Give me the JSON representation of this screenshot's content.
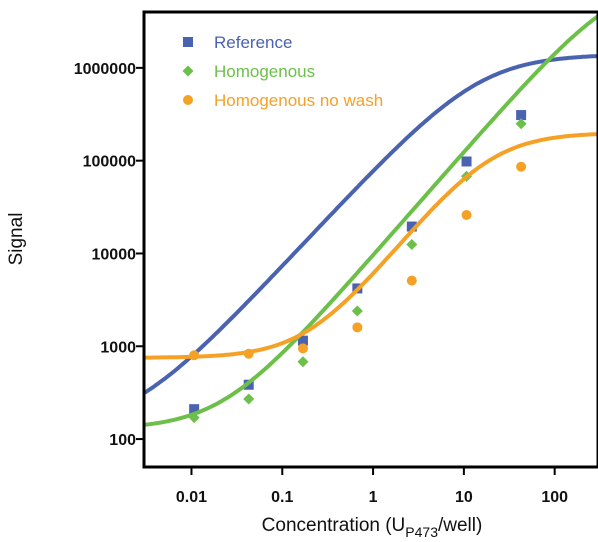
{
  "chart_data": {
    "type": "scatter",
    "xlabel": {
      "main": "Concentration (U",
      "sub": "P473",
      "tail": "/well)"
    },
    "ylabel": "Signal",
    "x_scale": "log",
    "y_scale": "log",
    "xlim": [
      0.003,
      300
    ],
    "ylim": [
      50,
      4000000
    ],
    "x_ticks": [
      0.01,
      0.1,
      1,
      10,
      100
    ],
    "x_tick_labels": [
      "0.01",
      "0.1",
      "1",
      "10",
      "100"
    ],
    "y_ticks": [
      100,
      1000,
      10000,
      100000,
      1000000
    ],
    "y_tick_labels": [
      "100",
      "1000",
      "10000",
      "100000",
      "1000000"
    ],
    "grid": false,
    "legend_position": "top-left",
    "series": [
      {
        "name": "Reference",
        "color": "#4a63b0",
        "marker": "square",
        "x": [
          0.0107,
          0.0427,
          0.169,
          0.671,
          2.67,
          10.7,
          42.7
        ],
        "y": [
          210,
          385,
          1150,
          4200,
          19500,
          98000,
          310000
        ],
        "fit": {
          "bottom": 130,
          "top": 1400000,
          "ec50": 15,
          "hill": 1.05
        }
      },
      {
        "name": "Homogenous",
        "color": "#6cc04a",
        "marker": "diamond",
        "x": [
          0.0107,
          0.0427,
          0.169,
          0.671,
          2.67,
          10.7,
          42.7
        ],
        "y": [
          170,
          270,
          680,
          2400,
          12500,
          68000,
          250000
        ],
        "fit": {
          "bottom": 128,
          "top": 10000000,
          "ec50": 500,
          "hill": 1.12
        }
      },
      {
        "name": "Homogenous no wash",
        "color": "#f5a125",
        "marker": "circle",
        "x": [
          0.0107,
          0.0427,
          0.169,
          0.671,
          2.67,
          10.7,
          42.7
        ],
        "y": [
          800,
          830,
          950,
          1600,
          5100,
          26000,
          86000
        ],
        "fit": {
          "bottom": 750,
          "top": 200000,
          "ec50": 19,
          "hill": 1.22
        }
      }
    ]
  }
}
